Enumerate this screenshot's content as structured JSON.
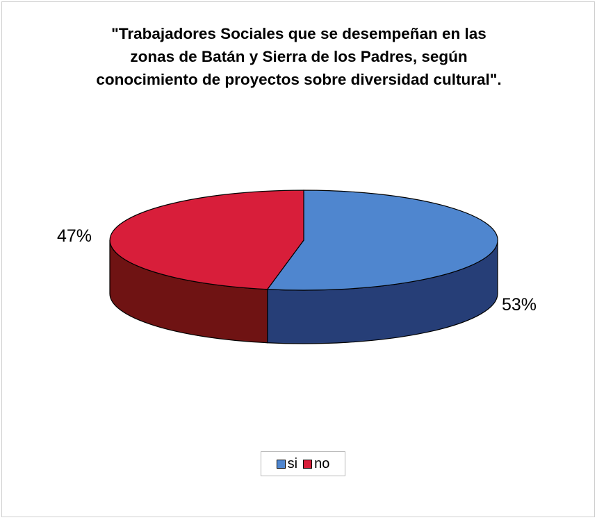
{
  "chart_data": {
    "type": "pie",
    "title": "\"Trabajadores Sociales que se desempeñan en las zonas de Batán y Sierra de los Padres, según conocimiento de proyectos sobre diversidad cultural\".",
    "title_lines": [
      "\"Trabajadores Sociales que se desempeñan en las",
      "zonas de Batán y Sierra de los Padres, según",
      "conocimiento de proyectos sobre diversidad cultural\"."
    ],
    "categories": [
      "si",
      "no"
    ],
    "values": [
      53,
      47
    ],
    "data_labels": [
      "53%",
      "47%"
    ],
    "colors": [
      "#4f86cf",
      "#d81e3a"
    ],
    "side_colors": [
      "#263e77",
      "#6f1313"
    ],
    "three_d": true,
    "legend_position": "bottom"
  }
}
